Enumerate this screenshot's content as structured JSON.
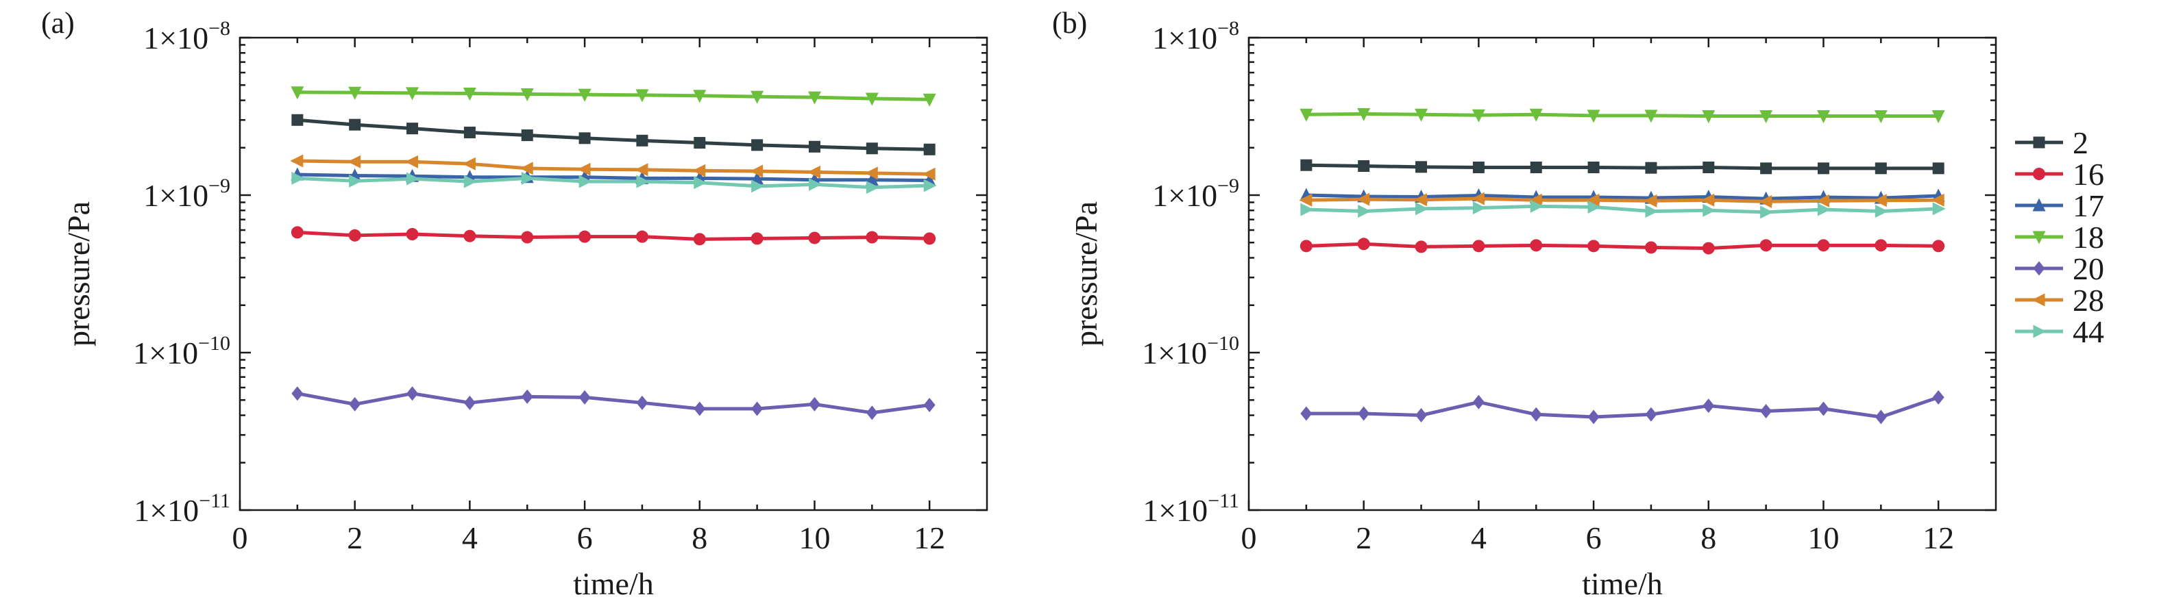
{
  "chart_data": [
    {
      "type": "line",
      "panel_label": "(a)",
      "xlabel": "time/h",
      "ylabel": "pressure/Pa",
      "xlim": [
        0,
        13
      ],
      "ylim": [
        1e-11,
        1e-08
      ],
      "yscale": "log",
      "xticks": [
        0,
        2,
        4,
        6,
        8,
        10,
        12
      ],
      "yticks": [
        {
          "value": 1e-08,
          "mantissa": "1×10",
          "exponent": "−8"
        },
        {
          "value": 1e-09,
          "mantissa": "1×10",
          "exponent": "−9"
        },
        {
          "value": 1e-10,
          "mantissa": "1×10",
          "exponent": "−10"
        },
        {
          "value": 1e-11,
          "mantissa": "1×10",
          "exponent": "−11"
        }
      ],
      "grid": false,
      "x": [
        1,
        2,
        3,
        4,
        5,
        6,
        7,
        8,
        9,
        10,
        11,
        12
      ],
      "series": [
        {
          "name": "2",
          "color": "#2f3f44",
          "marker": "square",
          "values": [
            3e-09,
            2.8e-09,
            2.65e-09,
            2.5e-09,
            2.4e-09,
            2.3e-09,
            2.22e-09,
            2.15e-09,
            2.08e-09,
            2.03e-09,
            1.98e-09,
            1.95e-09
          ]
        },
        {
          "name": "16",
          "color": "#d7263d",
          "marker": "circle",
          "values": [
            5.8e-10,
            5.55e-10,
            5.65e-10,
            5.5e-10,
            5.4e-10,
            5.45e-10,
            5.45e-10,
            5.25e-10,
            5.3e-10,
            5.35e-10,
            5.4e-10,
            5.3e-10
          ]
        },
        {
          "name": "17",
          "color": "#3a64a8",
          "marker": "triangle-up",
          "values": [
            1.35e-09,
            1.33e-09,
            1.32e-09,
            1.3e-09,
            1.3e-09,
            1.3e-09,
            1.28e-09,
            1.28e-09,
            1.27e-09,
            1.25e-09,
            1.25e-09,
            1.24e-09
          ]
        },
        {
          "name": "18",
          "color": "#6cbf3a",
          "marker": "triangle-down",
          "values": [
            4.5e-09,
            4.48e-09,
            4.45e-09,
            4.42e-09,
            4.38e-09,
            4.35e-09,
            4.32e-09,
            4.28e-09,
            4.22e-09,
            4.18e-09,
            4.1e-09,
            4.05e-09
          ]
        },
        {
          "name": "20",
          "color": "#6a5fb0",
          "marker": "diamond",
          "values": [
            5.5e-11,
            4.7e-11,
            5.5e-11,
            4.8e-11,
            5.25e-11,
            5.2e-11,
            4.8e-11,
            4.4e-11,
            4.4e-11,
            4.7e-11,
            4.15e-11,
            4.65e-11
          ]
        },
        {
          "name": "28",
          "color": "#d8862b",
          "marker": "triangle-left",
          "values": [
            1.65e-09,
            1.63e-09,
            1.63e-09,
            1.58e-09,
            1.48e-09,
            1.46e-09,
            1.45e-09,
            1.43e-09,
            1.42e-09,
            1.4e-09,
            1.38e-09,
            1.36e-09
          ]
        },
        {
          "name": "44",
          "color": "#72c8b0",
          "marker": "triangle-right",
          "values": [
            1.28e-09,
            1.23e-09,
            1.27e-09,
            1.22e-09,
            1.28e-09,
            1.22e-09,
            1.22e-09,
            1.2e-09,
            1.14e-09,
            1.17e-09,
            1.12e-09,
            1.15e-09
          ]
        }
      ]
    },
    {
      "type": "line",
      "panel_label": "(b)",
      "xlabel": "time/h",
      "ylabel": "pressure/Pa",
      "xlim": [
        0,
        13
      ],
      "ylim": [
        1e-11,
        1e-08
      ],
      "yscale": "log",
      "xticks": [
        0,
        2,
        4,
        6,
        8,
        10,
        12
      ],
      "yticks": [
        {
          "value": 1e-08,
          "mantissa": "1×10",
          "exponent": "−8"
        },
        {
          "value": 1e-09,
          "mantissa": "1×10",
          "exponent": "−9"
        },
        {
          "value": 1e-10,
          "mantissa": "1×10",
          "exponent": "−10"
        },
        {
          "value": 1e-11,
          "mantissa": "1×10",
          "exponent": "−11"
        }
      ],
      "grid": false,
      "legend": "right",
      "x": [
        1,
        2,
        3,
        4,
        5,
        6,
        7,
        8,
        9,
        10,
        11,
        12
      ],
      "series": [
        {
          "name": "2",
          "color": "#2f3f44",
          "marker": "square",
          "values": [
            1.55e-09,
            1.53e-09,
            1.51e-09,
            1.5e-09,
            1.5e-09,
            1.5e-09,
            1.49e-09,
            1.5e-09,
            1.48e-09,
            1.48e-09,
            1.48e-09,
            1.48e-09
          ]
        },
        {
          "name": "16",
          "color": "#d7263d",
          "marker": "circle",
          "values": [
            4.75e-10,
            4.9e-10,
            4.7e-10,
            4.75e-10,
            4.8e-10,
            4.75e-10,
            4.65e-10,
            4.6e-10,
            4.8e-10,
            4.8e-10,
            4.8e-10,
            4.75e-10
          ]
        },
        {
          "name": "17",
          "color": "#3a64a8",
          "marker": "triangle-up",
          "values": [
            1e-09,
            9.8e-10,
            9.75e-10,
            9.95e-10,
            9.7e-10,
            9.7e-10,
            9.6e-10,
            9.75e-10,
            9.5e-10,
            9.7e-10,
            9.6e-10,
            9.9e-10
          ]
        },
        {
          "name": "18",
          "color": "#6cbf3a",
          "marker": "triangle-down",
          "values": [
            3.25e-09,
            3.28e-09,
            3.25e-09,
            3.22e-09,
            3.25e-09,
            3.2e-09,
            3.2e-09,
            3.18e-09,
            3.18e-09,
            3.18e-09,
            3.18e-09,
            3.18e-09
          ]
        },
        {
          "name": "20",
          "color": "#6a5fb0",
          "marker": "diamond",
          "values": [
            4.1e-11,
            4.1e-11,
            4e-11,
            4.85e-11,
            4.05e-11,
            3.9e-11,
            4.05e-11,
            4.6e-11,
            4.25e-11,
            4.4e-11,
            3.9e-11,
            5.2e-11
          ]
        },
        {
          "name": "28",
          "color": "#d8862b",
          "marker": "triangle-left",
          "values": [
            9.3e-10,
            9.4e-10,
            9.35e-10,
            9.5e-10,
            9.3e-10,
            9.3e-10,
            9.2e-10,
            9.3e-10,
            9.1e-10,
            9.2e-10,
            9.25e-10,
            9.3e-10
          ]
        },
        {
          "name": "44",
          "color": "#72c8b0",
          "marker": "triangle-right",
          "values": [
            8.1e-10,
            7.9e-10,
            8.2e-10,
            8.3e-10,
            8.5e-10,
            8.4e-10,
            7.9e-10,
            8e-10,
            7.8e-10,
            8.1e-10,
            7.9e-10,
            8.2e-10
          ]
        }
      ]
    }
  ]
}
